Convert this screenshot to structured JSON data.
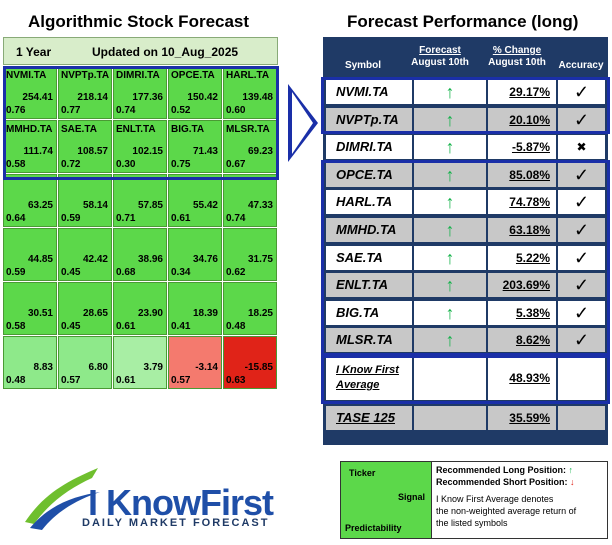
{
  "left_title": "Algorithmic Stock Forecast",
  "right_title": "Forecast Performance (long)",
  "left_header": {
    "horizon": "1 Year",
    "updated": "Updated on 10_Aug_2025"
  },
  "grid": [
    {
      "symbol": "NVMI.TA",
      "signal": "254.41",
      "predictability": "0.76",
      "color": "#5cd84a"
    },
    {
      "symbol": "NVPTp.TA",
      "signal": "218.14",
      "predictability": "0.77",
      "color": "#5cd84a"
    },
    {
      "symbol": "DIMRI.TA",
      "signal": "177.36",
      "predictability": "0.74",
      "color": "#5cd84a"
    },
    {
      "symbol": "OPCE.TA",
      "signal": "150.42",
      "predictability": "0.52",
      "color": "#5cd84a"
    },
    {
      "symbol": "HARL.TA",
      "signal": "139.48",
      "predictability": "0.60",
      "color": "#5cd84a"
    },
    {
      "symbol": "MMHD.TA",
      "signal": "111.74",
      "predictability": "0.58",
      "color": "#5cd84a"
    },
    {
      "symbol": "SAE.TA",
      "signal": "108.57",
      "predictability": "0.72",
      "color": "#5cd84a"
    },
    {
      "symbol": "ENLT.TA",
      "signal": "102.15",
      "predictability": "0.30",
      "color": "#5cd84a"
    },
    {
      "symbol": "BIG.TA",
      "signal": "71.43",
      "predictability": "0.75",
      "color": "#5cd84a"
    },
    {
      "symbol": "MLSR.TA",
      "signal": "69.23",
      "predictability": "0.67",
      "color": "#5cd84a"
    },
    {
      "symbol": "",
      "signal": "63.25",
      "predictability": "0.64",
      "color": "#5cd84a"
    },
    {
      "symbol": "",
      "signal": "58.14",
      "predictability": "0.59",
      "color": "#5cd84a"
    },
    {
      "symbol": "",
      "signal": "57.85",
      "predictability": "0.71",
      "color": "#5cd84a"
    },
    {
      "symbol": "",
      "signal": "55.42",
      "predictability": "0.61",
      "color": "#5cd84a"
    },
    {
      "symbol": "",
      "signal": "47.33",
      "predictability": "0.74",
      "color": "#5cd84a"
    },
    {
      "symbol": "",
      "signal": "44.85",
      "predictability": "0.59",
      "color": "#5cd84a"
    },
    {
      "symbol": "",
      "signal": "42.42",
      "predictability": "0.45",
      "color": "#5cd84a"
    },
    {
      "symbol": "",
      "signal": "38.96",
      "predictability": "0.68",
      "color": "#5cd84a"
    },
    {
      "symbol": "",
      "signal": "34.76",
      "predictability": "0.34",
      "color": "#5cd84a"
    },
    {
      "symbol": "",
      "signal": "31.75",
      "predictability": "0.62",
      "color": "#5cd84a"
    },
    {
      "symbol": "",
      "signal": "30.51",
      "predictability": "0.58",
      "color": "#5cd84a"
    },
    {
      "symbol": "",
      "signal": "28.65",
      "predictability": "0.45",
      "color": "#5cd84a"
    },
    {
      "symbol": "",
      "signal": "23.90",
      "predictability": "0.61",
      "color": "#5cd84a"
    },
    {
      "symbol": "",
      "signal": "18.39",
      "predictability": "0.41",
      "color": "#5cd84a"
    },
    {
      "symbol": "",
      "signal": "18.25",
      "predictability": "0.48",
      "color": "#5cd84a"
    },
    {
      "symbol": "",
      "signal": "8.83",
      "predictability": "0.48",
      "color": "#8ee98a"
    },
    {
      "symbol": "",
      "signal": "6.80",
      "predictability": "0.57",
      "color": "#8ee98a"
    },
    {
      "symbol": "",
      "signal": "3.79",
      "predictability": "0.61",
      "color": "#a8eea4"
    },
    {
      "symbol": "",
      "signal": "-3.14",
      "predictability": "0.57",
      "color": "#f47a6e"
    },
    {
      "symbol": "",
      "signal": "-15.85",
      "predictability": "0.63",
      "color": "#e02318"
    }
  ],
  "table": {
    "headers": {
      "symbol": "Symbol",
      "forecast": "Forecast",
      "date1": "August 10th",
      "change": "% Change",
      "date2": "August 10th",
      "accuracy": "Accuracy"
    },
    "rows": [
      {
        "symbol": "NVMI.TA",
        "arrow": "↑",
        "change": "29.17%",
        "acc": "✓",
        "bg": "#ffffff"
      },
      {
        "symbol": "NVPTp.TA",
        "arrow": "↑",
        "change": "20.10%",
        "acc": "✓",
        "bg": "#c8c8c8"
      },
      {
        "symbol": "DIMRI.TA",
        "arrow": "↑",
        "change": "-5.87%",
        "acc": "✖",
        "bg": "#ffffff"
      },
      {
        "symbol": "OPCE.TA",
        "arrow": "↑",
        "change": "85.08%",
        "acc": "✓",
        "bg": "#c8c8c8"
      },
      {
        "symbol": "HARL.TA",
        "arrow": "↑",
        "change": "74.78%",
        "acc": "✓",
        "bg": "#ffffff"
      },
      {
        "symbol": "MMHD.TA",
        "arrow": "↑",
        "change": "63.18%",
        "acc": "✓",
        "bg": "#c8c8c8"
      },
      {
        "symbol": "SAE.TA",
        "arrow": "↑",
        "change": "5.22%",
        "acc": "✓",
        "bg": "#ffffff"
      },
      {
        "symbol": "ENLT.TA",
        "arrow": "↑",
        "change": "203.69%",
        "acc": "✓",
        "bg": "#c8c8c8"
      },
      {
        "symbol": "BIG.TA",
        "arrow": "↑",
        "change": "5.38%",
        "acc": "✓",
        "bg": "#ffffff"
      },
      {
        "symbol": "MLSR.TA",
        "arrow": "↑",
        "change": "8.62%",
        "acc": "✓",
        "bg": "#c8c8c8"
      }
    ],
    "average": {
      "label1": "I Know First",
      "label2": "Average",
      "value": "48.93%"
    },
    "tase": {
      "label": "TASE 125",
      "value": "35.59%"
    }
  },
  "legend": {
    "ticker": "Ticker",
    "signal": "Signal",
    "predictability": "Predictability",
    "long": "Recommended Long Position:",
    "short": "Recommended Short Position:",
    "note1": "I Know First Average denotes",
    "note2": "the non-weighted average return of",
    "note3": "the listed symbols"
  },
  "logo": {
    "brand": "I KnowFirst",
    "tagline": "DAILY MARKET FORECAST"
  }
}
